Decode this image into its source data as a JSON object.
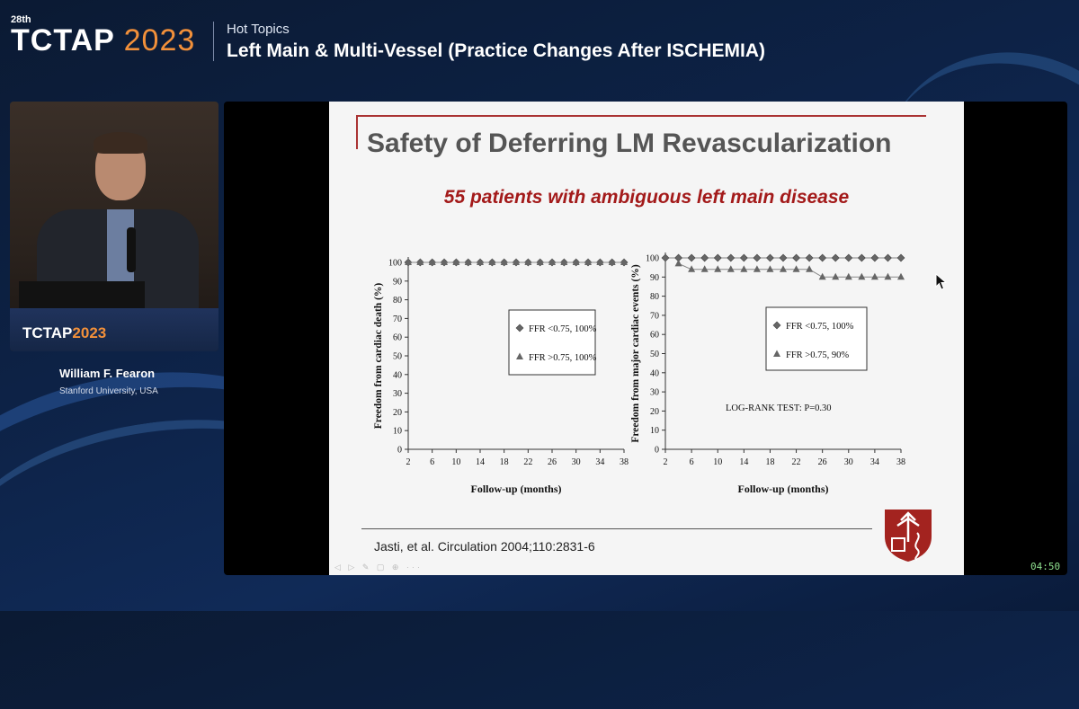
{
  "header": {
    "edition": "28th",
    "brand": "TCTAP",
    "year": "2023",
    "category": "Hot Topics",
    "session_title": "Left Main & Multi-Vessel (Practice Changes After ISCHEMIA)"
  },
  "speaker": {
    "podium_brand": "TCTAP",
    "podium_year": "2023",
    "name": "William F. Fearon",
    "affiliation": "Stanford University, USA"
  },
  "slide": {
    "title": "Safety of Deferring LM Revascularization",
    "subtitle": "55 patients with ambiguous left main disease",
    "citation": "Jasti, et al. Circulation 2004;110:2831-6"
  },
  "timer": "04:50",
  "colors": {
    "accent": "#f2903a",
    "slide_red": "#a31a1a",
    "background": "#0d2246"
  },
  "chart_data": [
    {
      "type": "line",
      "xlabel": "Follow-up (months)",
      "ylabel": "Freedom from cardiac death (%)",
      "ylim": [
        0,
        100
      ],
      "xticks": [
        2,
        6,
        10,
        14,
        18,
        22,
        26,
        30,
        34,
        38
      ],
      "yticks": [
        0,
        10,
        20,
        30,
        40,
        50,
        60,
        70,
        80,
        90,
        100
      ],
      "legend": [
        "FFR <0.75, 100%",
        "FFR >0.75, 100%"
      ],
      "series": [
        {
          "name": "FFR <0.75, 100%",
          "marker": "diamond",
          "x": [
            2,
            4,
            6,
            8,
            10,
            12,
            14,
            16,
            18,
            20,
            22,
            24,
            26,
            28,
            30,
            32,
            34,
            36,
            38
          ],
          "y": [
            100,
            100,
            100,
            100,
            100,
            100,
            100,
            100,
            100,
            100,
            100,
            100,
            100,
            100,
            100,
            100,
            100,
            100,
            100
          ]
        },
        {
          "name": "FFR >0.75, 100%",
          "marker": "triangle",
          "x": [
            2,
            4,
            6,
            8,
            10,
            12,
            14,
            16,
            18,
            20,
            22,
            24,
            26,
            28,
            30,
            32,
            34,
            36,
            38
          ],
          "y": [
            100,
            100,
            100,
            100,
            100,
            100,
            100,
            100,
            100,
            100,
            100,
            100,
            100,
            100,
            100,
            100,
            100,
            100,
            100
          ]
        }
      ]
    },
    {
      "type": "line",
      "xlabel": "Follow-up (months)",
      "ylabel": "Freedom from major cardiac events (%)",
      "ylim": [
        0,
        100
      ],
      "xticks": [
        2,
        6,
        10,
        14,
        18,
        22,
        26,
        30,
        34,
        38
      ],
      "yticks": [
        0,
        10,
        20,
        30,
        40,
        50,
        60,
        70,
        80,
        90,
        100
      ],
      "legend": [
        "FFR <0.75, 100%",
        "FFR >0.75, 90%"
      ],
      "annotation": "LOG-RANK TEST: P=0.30",
      "series": [
        {
          "name": "FFR <0.75, 100%",
          "marker": "diamond",
          "x": [
            2,
            4,
            6,
            8,
            10,
            12,
            14,
            16,
            18,
            20,
            22,
            24,
            26,
            28,
            30,
            32,
            34,
            36,
            38
          ],
          "y": [
            100,
            100,
            100,
            100,
            100,
            100,
            100,
            100,
            100,
            100,
            100,
            100,
            100,
            100,
            100,
            100,
            100,
            100,
            100
          ]
        },
        {
          "name": "FFR >0.75, 90%",
          "marker": "triangle",
          "x": [
            4,
            6,
            8,
            10,
            12,
            14,
            16,
            18,
            20,
            22,
            24,
            26,
            28,
            30,
            32,
            34,
            36,
            38
          ],
          "y": [
            97,
            94,
            94,
            94,
            94,
            94,
            94,
            94,
            94,
            94,
            94,
            90,
            90,
            90,
            90,
            90,
            90,
            90
          ]
        }
      ]
    }
  ]
}
